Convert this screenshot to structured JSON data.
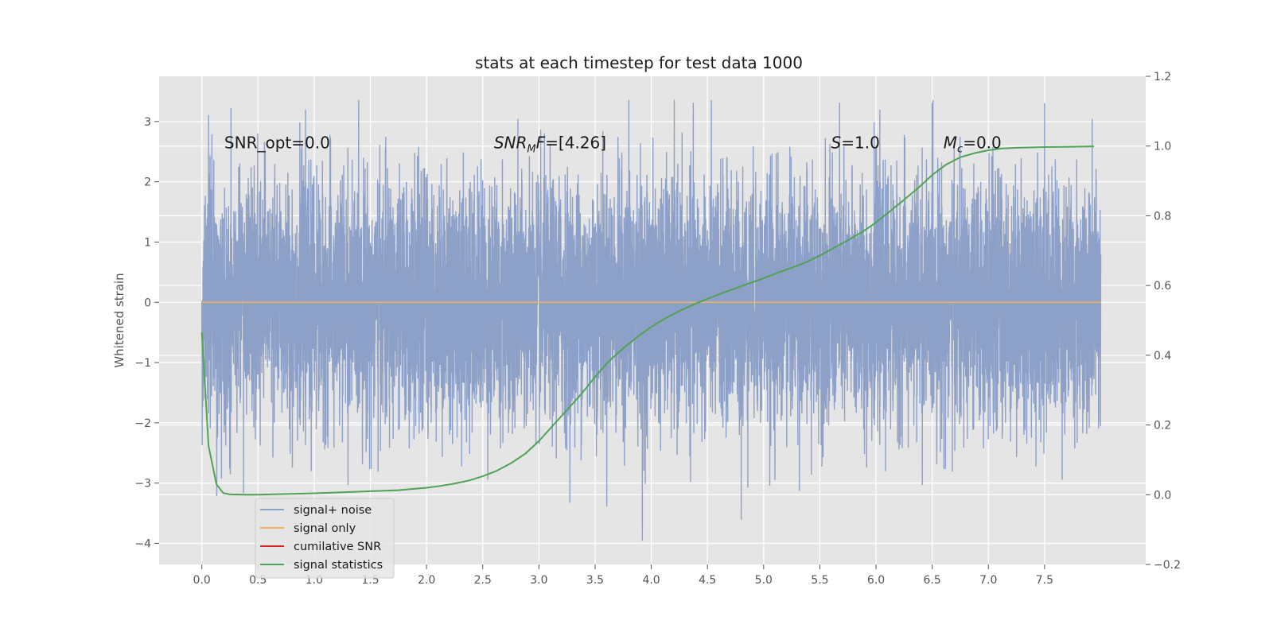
{
  "chart_data": {
    "type": "line",
    "title": "stats at each timestep for test data 1000",
    "xlabel": "",
    "ylabel": "Whitened strain",
    "ylabel_right": "",
    "xlim": [
      -0.38,
      8.4
    ],
    "ylim": [
      -4.35,
      3.75
    ],
    "ylim_right": [
      -0.2,
      1.2
    ],
    "grid": true,
    "x_ticks": [
      0.0,
      0.5,
      1.0,
      1.5,
      2.0,
      2.5,
      3.0,
      3.5,
      4.0,
      4.5,
      5.0,
      5.5,
      6.0,
      6.5,
      7.0,
      7.5
    ],
    "x_tick_labels": [
      "0.0",
      "0.5",
      "1.0",
      "1.5",
      "2.0",
      "2.5",
      "3.0",
      "3.5",
      "4.0",
      "4.5",
      "5.0",
      "5.5",
      "6.0",
      "6.5",
      "7.0",
      "7.5"
    ],
    "y_ticks": [
      -4,
      -3,
      -2,
      -1,
      0,
      1,
      2,
      3
    ],
    "y_tick_labels": [
      "−4",
      "−3",
      "−2",
      "−1",
      "0",
      "1",
      "2",
      "3"
    ],
    "y_right_ticks": [
      -0.2,
      0.0,
      0.2,
      0.4,
      0.6,
      0.8,
      1.0,
      1.2
    ],
    "y_right_tick_labels": [
      "−0.2",
      "0.0",
      "0.2",
      "0.4",
      "0.6",
      "0.8",
      "1.0",
      "1.2"
    ],
    "annotations": [
      {
        "text": "SNR_opt=0.0",
        "x": 0.2,
        "y": 2.65,
        "math": false
      },
      {
        "text": "SNR_MF=[4.26]",
        "x": 2.6,
        "y": 2.65,
        "math": true,
        "base": "SNR",
        "sub": "M",
        "rest": "F=[4.26]"
      },
      {
        "text": "S=1.0",
        "x": 5.6,
        "y": 2.65,
        "math": true,
        "base": "S",
        "sub": "",
        "rest": "=1.0"
      },
      {
        "text": "M_c=0.0",
        "x": 6.6,
        "y": 2.65,
        "math": true,
        "base": "M",
        "sub": "c",
        "rest": "=0.0"
      }
    ],
    "legend": {
      "placement": "lower-left",
      "entries": [
        {
          "name": "signal+ noise",
          "color": "#8da0c8"
        },
        {
          "name": "signal only",
          "color": "#f0b35a"
        },
        {
          "name": "cumilative SNR",
          "color": "#d62728"
        },
        {
          "name": "signal statistics",
          "color": "#4fa354"
        }
      ]
    },
    "series": [
      {
        "name": "signal+ noise",
        "axis": "left",
        "color": "#8da0c8",
        "x_range": [
          0.0,
          8.0
        ],
        "samples": 8192,
        "value_range": [
          -3.95,
          3.35
        ],
        "noise_std": 1.0,
        "notable_points": [
          [
            0.06,
            3.1
          ],
          [
            3.92,
            -3.95
          ],
          [
            4.8,
            -3.6
          ],
          [
            7.5,
            3.3
          ],
          [
            6.5,
            3.3
          ],
          [
            3.8,
            3.35
          ]
        ]
      },
      {
        "name": "signal only",
        "axis": "left",
        "color": "#f0b35a",
        "x": [
          0.0,
          8.0
        ],
        "y": [
          0.0,
          0.0
        ]
      },
      {
        "name": "signal statistics",
        "axis": "right",
        "color": "#4fa354",
        "x": [
          0.0,
          0.06,
          0.13,
          0.19,
          0.25,
          0.38,
          0.5,
          0.75,
          1.0,
          1.25,
          1.5,
          1.75,
          2.0,
          2.12,
          2.25,
          2.38,
          2.5,
          2.62,
          2.75,
          2.88,
          3.0,
          3.12,
          3.25,
          3.38,
          3.5,
          3.62,
          3.75,
          3.88,
          4.0,
          4.12,
          4.25,
          4.38,
          4.5,
          4.62,
          4.75,
          4.88,
          5.0,
          5.12,
          5.25,
          5.38,
          5.5,
          5.62,
          5.75,
          5.88,
          6.0,
          6.12,
          6.25,
          6.38,
          6.5,
          6.62,
          6.75,
          6.88,
          7.0,
          7.12,
          7.25,
          7.5,
          7.75,
          7.94
        ],
        "y": [
          0.466,
          0.14,
          0.03,
          0.005,
          0.001,
          0.0,
          0.0,
          0.002,
          0.004,
          0.007,
          0.01,
          0.013,
          0.02,
          0.025,
          0.032,
          0.041,
          0.053,
          0.068,
          0.09,
          0.118,
          0.154,
          0.197,
          0.243,
          0.29,
          0.338,
          0.382,
          0.42,
          0.454,
          0.481,
          0.505,
          0.527,
          0.546,
          0.562,
          0.577,
          0.592,
          0.607,
          0.621,
          0.636,
          0.651,
          0.667,
          0.686,
          0.707,
          0.73,
          0.754,
          0.781,
          0.812,
          0.846,
          0.881,
          0.917,
          0.946,
          0.968,
          0.98,
          0.988,
          0.993,
          0.995,
          0.997,
          0.998,
          0.999
        ]
      }
    ]
  }
}
